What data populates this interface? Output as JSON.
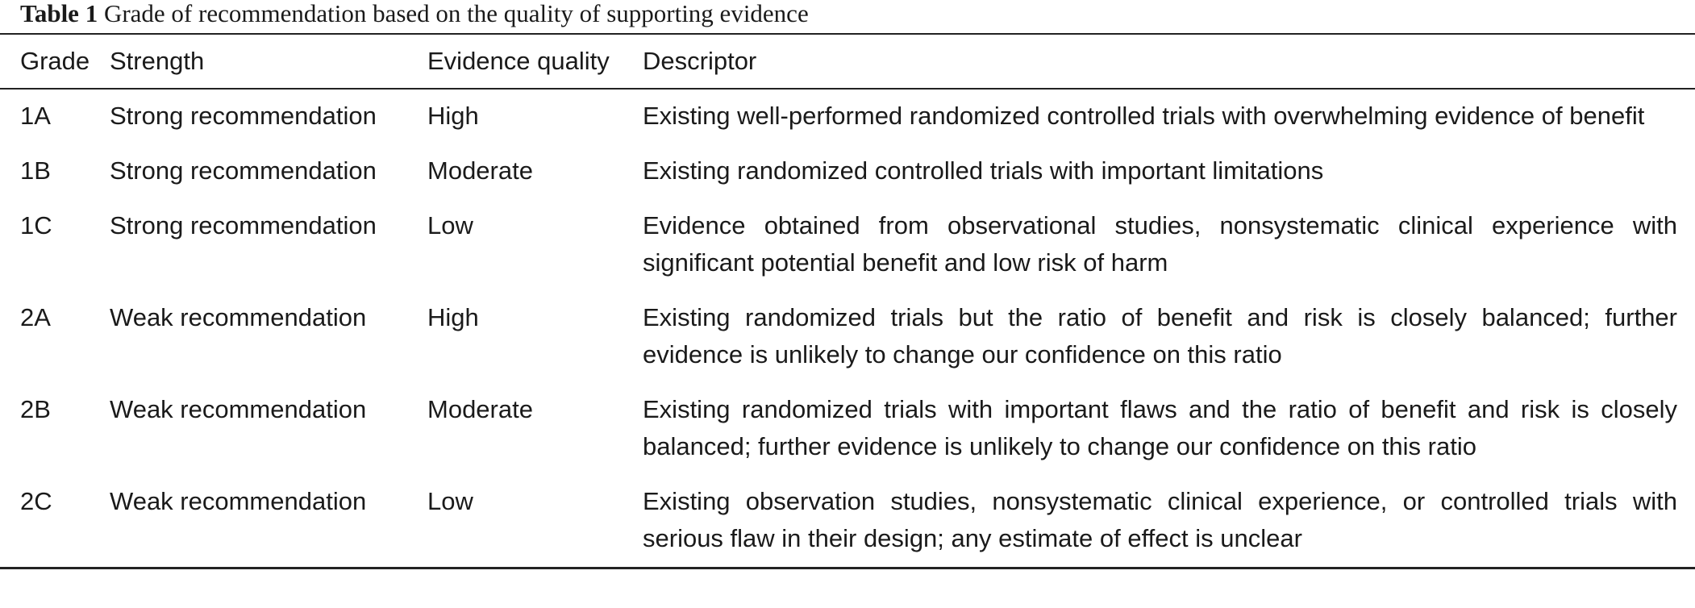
{
  "caption": {
    "label": "Table 1",
    "text": "Grade of recommendation based on the quality of supporting evidence"
  },
  "table": {
    "headers": [
      "Grade",
      "Strength",
      "Evidence quality",
      "Descriptor"
    ],
    "rows": [
      [
        "1A",
        "Strong recommendation",
        "High",
        "Existing well-performed randomized controlled trials with overwhelming evidence of benefit"
      ],
      [
        "1B",
        "Strong recommendation",
        "Moderate",
        "Existing randomized controlled trials with important limitations"
      ],
      [
        "1C",
        "Strong recommendation",
        "Low",
        "Evidence obtained from observational studies, nonsystematic clinical experience with significant potential benefit and low risk of harm"
      ],
      [
        "2A",
        "Weak recommendation",
        "High",
        "Existing randomized trials but the ratio of benefit and risk is closely balanced; further evidence is unlikely to change our confidence on this ratio"
      ],
      [
        "2B",
        "Weak recommendation",
        "Moderate",
        "Existing randomized trials with important flaws and the ratio of benefit and risk is closely balanced; further evidence is unlikely to change our confidence on this ratio"
      ],
      [
        "2C",
        "Weak recommendation",
        "Low",
        "Existing observation studies, nonsystematic clinical experience, or controlled trials with serious flaw in their design; any estimate of effect is unclear"
      ]
    ]
  }
}
